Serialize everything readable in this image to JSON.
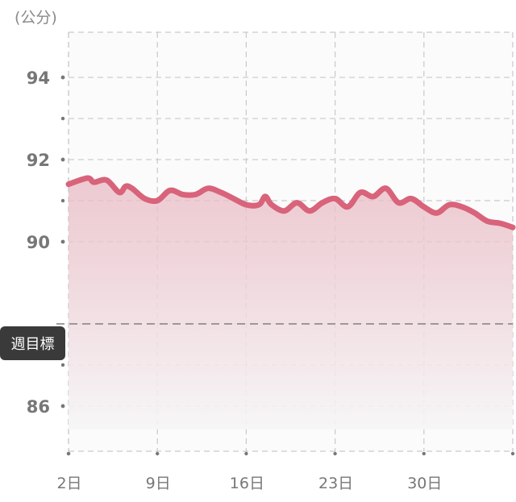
{
  "unit_label": "(公分)",
  "goal_label": "週目標",
  "colors": {
    "line": "#d8637a",
    "area_top": "#e8b9c3",
    "area_bottom": "#f6f6f6",
    "plot_bg": "#fbfbfb",
    "grid": "#c9c9c9",
    "goal_line": "#888888",
    "badge_bg": "#3a3a3a"
  },
  "chart_data": {
    "type": "area",
    "title": "",
    "xlabel": "",
    "ylabel": "(公分)",
    "x_ticks": [
      2,
      9,
      16,
      23,
      30
    ],
    "x_tick_labels": [
      "2日",
      "9日",
      "16日",
      "23日",
      "30日"
    ],
    "xlim": [
      2,
      37
    ],
    "y_ticks": [
      94,
      92,
      90,
      86
    ],
    "y_tick_labels": [
      "94",
      "92",
      "90",
      "86"
    ],
    "y_tick_values": [
      94,
      92,
      90,
      88,
      86
    ],
    "y_minor_ticks": [
      93,
      91,
      87
    ],
    "ylim": [
      84.9,
      95.1
    ],
    "grid": true,
    "goal_value": 88,
    "series": [
      {
        "x": [
          2,
          3.5,
          4,
          5,
          6,
          6.5,
          7,
          8,
          9,
          10,
          11,
          12,
          13,
          14,
          15,
          16,
          17,
          17.5,
          18,
          19,
          20,
          21,
          22,
          23,
          24,
          25,
          26,
          27,
          28,
          29,
          30,
          31,
          32,
          33,
          34,
          35,
          36,
          37
        ],
        "values": [
          91.4,
          91.55,
          91.45,
          91.5,
          91.2,
          91.35,
          91.3,
          91.05,
          91.0,
          91.25,
          91.15,
          91.15,
          91.3,
          91.2,
          91.05,
          90.9,
          90.9,
          91.1,
          90.9,
          90.75,
          90.95,
          90.75,
          90.95,
          91.05,
          90.85,
          91.2,
          91.1,
          91.3,
          90.95,
          91.05,
          90.85,
          90.7,
          90.9,
          90.85,
          90.7,
          90.5,
          90.45,
          90.35
        ]
      }
    ]
  }
}
